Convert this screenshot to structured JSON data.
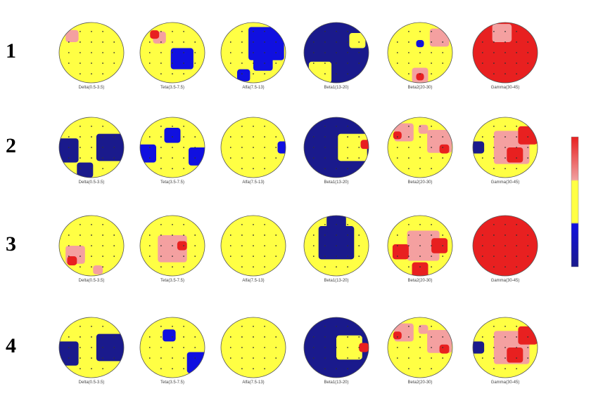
{
  "rows": [
    {
      "label": "1",
      "maps": [
        {
          "caption": "Delta(0.5-3.5)"
        },
        {
          "caption": "Teta(3.5-7.5)"
        },
        {
          "caption": "Alfa(7.5-13)"
        },
        {
          "caption": "Beta1(13-20)"
        },
        {
          "caption": "Beta2(20-30)"
        },
        {
          "caption": "Gamma(30-45)"
        }
      ]
    },
    {
      "label": "2",
      "maps": [
        {
          "caption": "Delta(0.5-3.5)"
        },
        {
          "caption": "Teta(3.5-7.5)"
        },
        {
          "caption": "Alfa(7.5-13)"
        },
        {
          "caption": "Beta1(13-20)"
        },
        {
          "caption": "Beta2(20-30)"
        },
        {
          "caption": "Gamma(30-45)"
        }
      ]
    },
    {
      "label": "3",
      "maps": [
        {
          "caption": "Delta(0.5-3.5)"
        },
        {
          "caption": "Teta(3.5-7.5)"
        },
        {
          "caption": "Alfa(7.5-13)"
        },
        {
          "caption": "Beta1(13-20)"
        },
        {
          "caption": "Beta2(20-30)"
        },
        {
          "caption": "Gamma(30-45)"
        }
      ]
    },
    {
      "label": "4",
      "maps": [
        {
          "caption": "Delta(0.5-3.5)"
        },
        {
          "caption": "Teta(3.5-7.5)"
        },
        {
          "caption": "Alfa(7.5-13)"
        },
        {
          "caption": "Beta1(13-20)"
        },
        {
          "caption": "Beta2(20-30)"
        },
        {
          "caption": "Gamma(30-45)"
        }
      ]
    }
  ]
}
